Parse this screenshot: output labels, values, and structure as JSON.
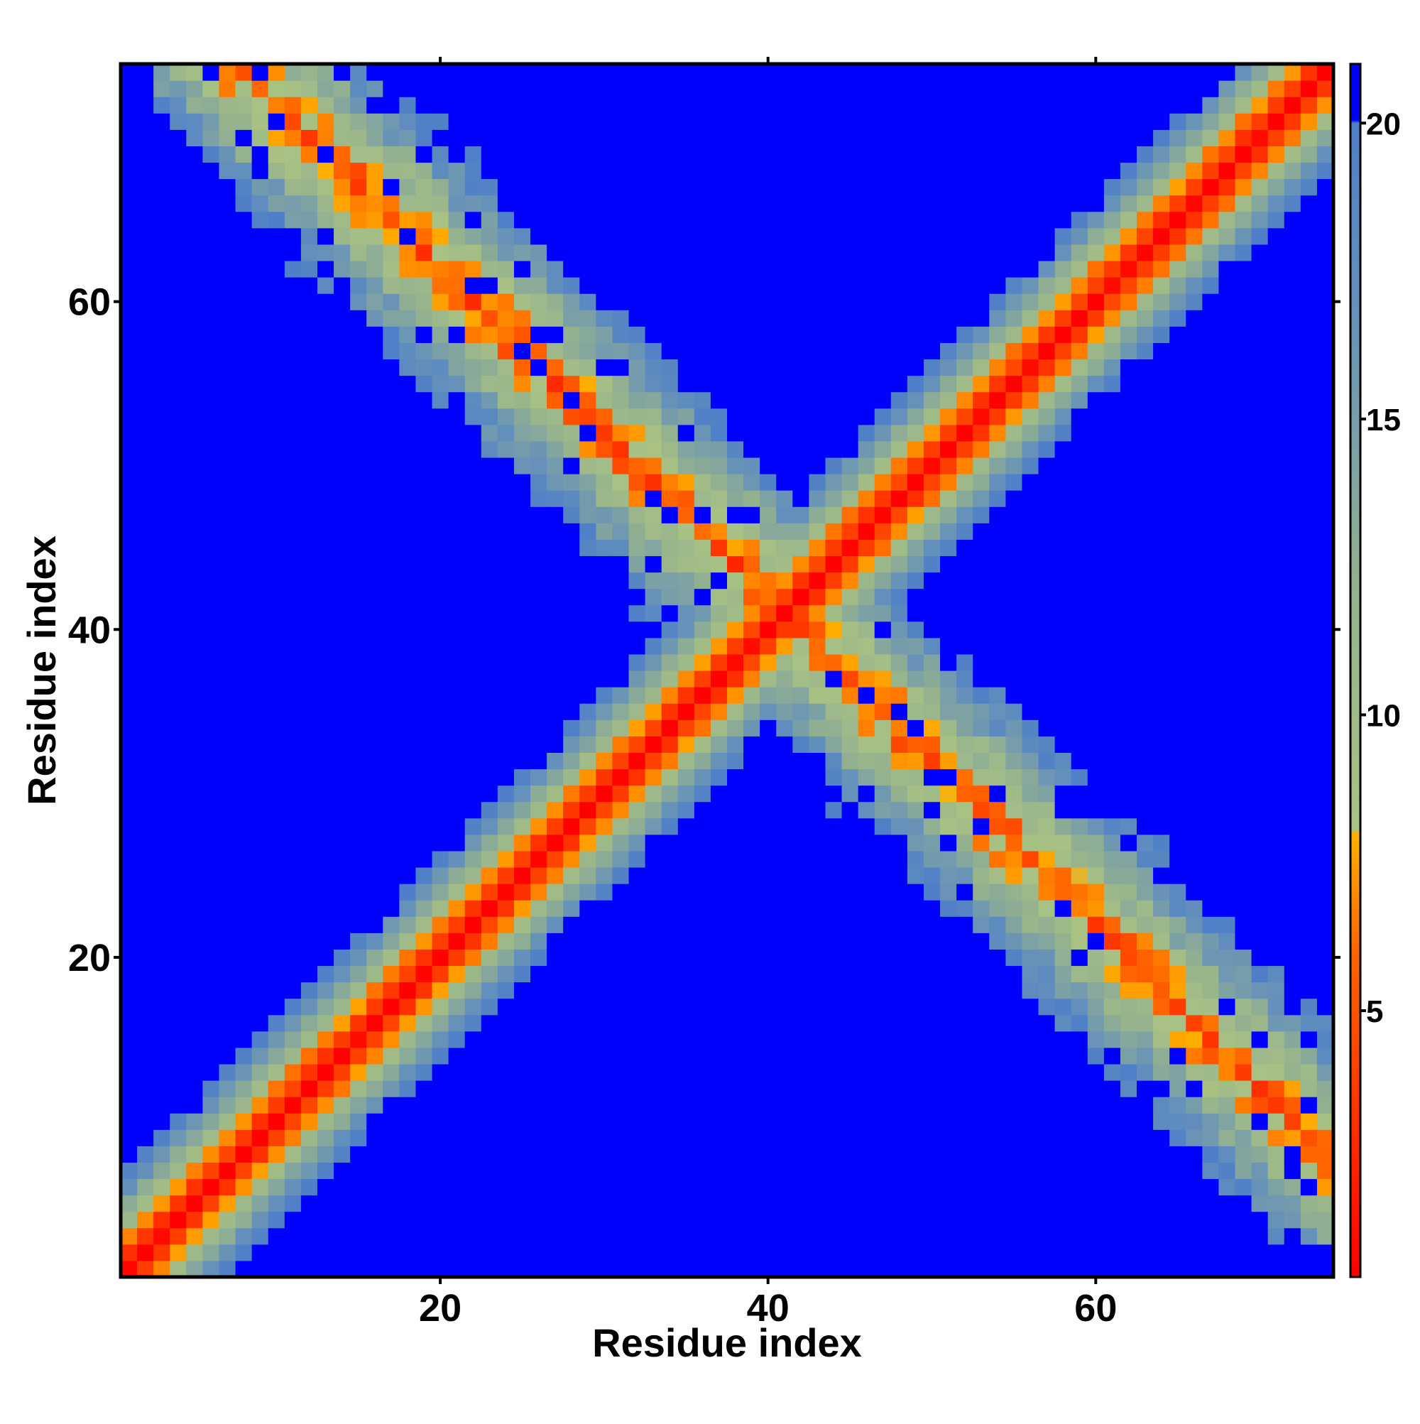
{
  "chart_data": {
    "type": "heatmap",
    "title": "",
    "xlabel": "Residue index",
    "ylabel": "Residue index",
    "n_residues": 74,
    "xlim": [
      1,
      74
    ],
    "ylim": [
      1,
      74
    ],
    "x_ticks": [
      20,
      40,
      60
    ],
    "y_ticks": [
      20,
      40,
      60
    ],
    "grid": false,
    "colorbar": {
      "placement": "right",
      "min": 0.5,
      "max": 21,
      "ticks": [
        5,
        10,
        15,
        20
      ],
      "stops": [
        {
          "value": 0.5,
          "color": "#ff0000"
        },
        {
          "value": 6.0,
          "color": "#ff6600"
        },
        {
          "value": 8.0,
          "color": "#ffb000"
        },
        {
          "value": 8.05,
          "color": "#a9c283"
        },
        {
          "value": 12.0,
          "color": "#95b28e"
        },
        {
          "value": 17.0,
          "color": "#6490bb"
        },
        {
          "value": 20.0,
          "color": "#4f7fc8"
        },
        {
          "value": 20.05,
          "color": "#0000ff"
        },
        {
          "value": 21.0,
          "color": "#0000ff"
        }
      ]
    },
    "value_description": "Cα distance map between residue i (x) and residue j (y); main diagonal band for sequential neighbours and an anti-diagonal band of contacts between the two halves (i + j ≈ 82)",
    "main_band": {
      "d0": 0.5,
      "slope": 3.2
    },
    "anti_band": {
      "sum": 82,
      "d_min": 5.0,
      "slope": 1.9,
      "x_range": [
        3,
        71
      ]
    },
    "blue_value": 21
  }
}
